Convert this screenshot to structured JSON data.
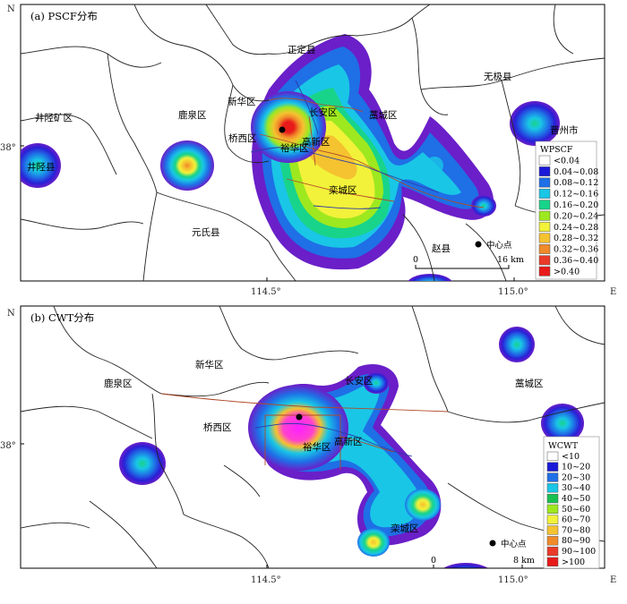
{
  "panel_a": {
    "title": "(a) PSCF分布",
    "axis": {
      "north": "N",
      "east": "E",
      "lat": "38°",
      "lon_left": "114.5°",
      "lon_right": "115.0°"
    },
    "places": {
      "zhengding": "正定县",
      "wuji": "无极县",
      "jingxingkuang": "井陉矿区",
      "luquan": "鹿泉区",
      "xinhua": "新华区",
      "changan": "长安区",
      "gaocheng": "藁城区",
      "jinzhou": "晋州市",
      "qiaoxi": "桥西区",
      "yuhua": "裕华区",
      "gaoxin": "高新区",
      "jingxing": "井陉县",
      "luancheng": "栾城区",
      "yuanshi": "元氏县",
      "zhaoxian": "赵县"
    },
    "center_label": "中心点",
    "scale": {
      "zero": "0",
      "max": "16 km"
    },
    "legend": {
      "title": "WPSCF",
      "entries": [
        {
          "label": "<0.04",
          "color": "#ffffff"
        },
        {
          "label": "0.04~0.08",
          "color": "#1a1ad8"
        },
        {
          "label": "0.08~0.12",
          "color": "#1f6fe6"
        },
        {
          "label": "0.12~0.16",
          "color": "#19c6e6"
        },
        {
          "label": "0.16~0.20",
          "color": "#18d48a"
        },
        {
          "label": "0.20~0.24",
          "color": "#9ee81f"
        },
        {
          "label": "0.24~0.28",
          "color": "#f2f23a"
        },
        {
          "label": "0.28~0.32",
          "color": "#f5c230"
        },
        {
          "label": "0.32~0.36",
          "color": "#f08a2a"
        },
        {
          "label": "0.36~0.40",
          "color": "#ea3a2a"
        },
        {
          "label": ">0.40",
          "color": "#e81a1a"
        }
      ]
    }
  },
  "panel_b": {
    "title": "(b) CWT分布",
    "axis": {
      "north": "N",
      "east": "E",
      "lat": "38°",
      "lon_left": "114.5°",
      "lon_right": "115.0°"
    },
    "places": {
      "xinhua": "新华区",
      "luquan": "鹿泉区",
      "changan": "长安区",
      "gaocheng": "藁城区",
      "qiaoxi": "桥西区",
      "yuhua": "裕华区",
      "gaoxin": "高新区",
      "luancheng": "栾城区"
    },
    "center_label": "中心点",
    "scale": {
      "zero": "0",
      "max": "8 km"
    },
    "legend": {
      "title": "WCWT",
      "entries": [
        {
          "label": "<10",
          "color": "#ffffff"
        },
        {
          "label": "10~20",
          "color": "#1a1ad8"
        },
        {
          "label": "20~30",
          "color": "#1f6fe6"
        },
        {
          "label": "30~40",
          "color": "#19c6e6"
        },
        {
          "label": "40~50",
          "color": "#18c050"
        },
        {
          "label": "50~60",
          "color": "#9ee81f"
        },
        {
          "label": "60~70",
          "color": "#f2f23a"
        },
        {
          "label": "70~80",
          "color": "#f5c230"
        },
        {
          "label": "80~90",
          "color": "#f08a2a"
        },
        {
          "label": "90~100",
          "color": "#ea3a2a"
        },
        {
          "label": ">100",
          "color": "#e81a1a"
        }
      ]
    }
  }
}
